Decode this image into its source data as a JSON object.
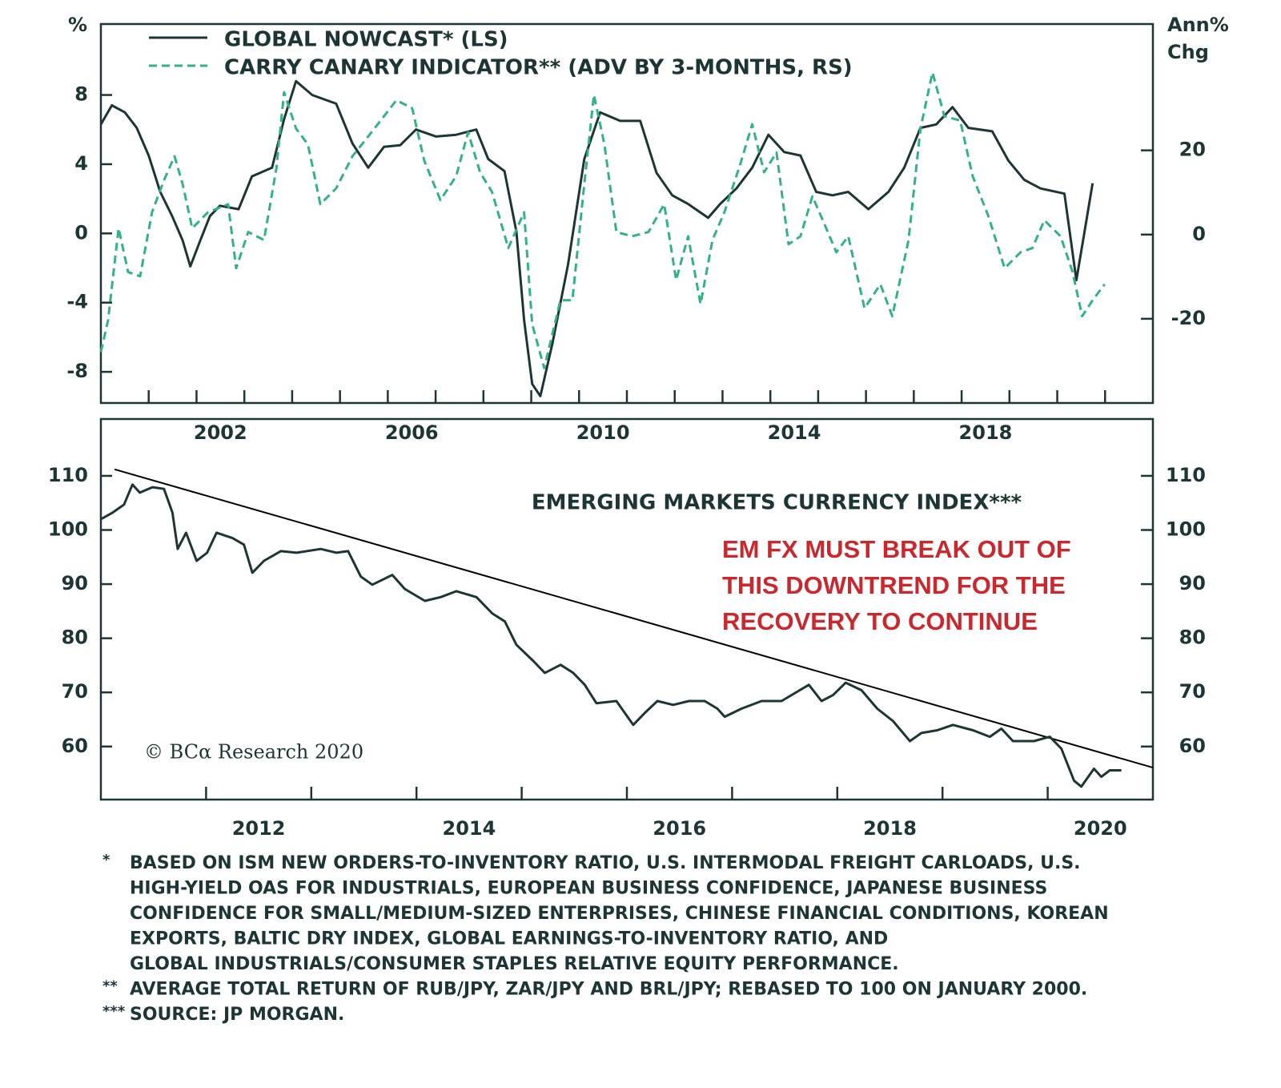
{
  "chart_data": [
    {
      "type": "line",
      "unit_label": "%",
      "y2_label": [
        "Ann%",
        "Chg"
      ],
      "xlim": [
        2000,
        2022
      ],
      "xticks": [
        2001,
        2002,
        2003,
        2004,
        2005,
        2006,
        2007,
        2008,
        2009,
        2010,
        2011,
        2012,
        2013,
        2014,
        2015,
        2016,
        2017,
        2018,
        2019,
        2020,
        2021
      ],
      "xtick_labels": [
        2002,
        2006,
        2010,
        2014,
        2018
      ],
      "ylim": [
        -9.8,
        12.1
      ],
      "yticks": [
        -8,
        -4,
        0,
        4,
        8
      ],
      "y2lim": [
        -40,
        50
      ],
      "y2ticks": [
        -20,
        0,
        20
      ],
      "legend": "top-left",
      "series": [
        {
          "name": "GLOBAL NOWCAST* (LS)",
          "color": "#1e3535",
          "dashed": false,
          "x": [
            2000.0,
            2000.23,
            2000.5,
            2000.75,
            2001.0,
            2001.24,
            2001.49,
            2001.71,
            2001.87,
            2002.08,
            2002.28,
            2002.49,
            2002.88,
            2003.16,
            2003.58,
            2003.83,
            2004.08,
            2004.42,
            2004.92,
            2005.26,
            2005.59,
            2005.92,
            2006.26,
            2006.59,
            2007.01,
            2007.43,
            2007.85,
            2008.1,
            2008.44,
            2008.69,
            2008.85,
            2009.02,
            2009.19,
            2009.44,
            2009.77,
            2010.11,
            2010.44,
            2010.86,
            2011.28,
            2011.62,
            2011.95,
            2012.28,
            2012.7,
            2012.95,
            2013.29,
            2013.62,
            2013.96,
            2014.29,
            2014.63,
            2014.96,
            2015.3,
            2015.63,
            2016.05,
            2016.47,
            2016.8,
            2017.14,
            2017.47,
            2017.81,
            2018.14,
            2018.64,
            2018.98,
            2019.31,
            2019.65,
            2020.15,
            2020.4,
            2020.57,
            2020.74
          ],
          "values": [
            6.3,
            7.4,
            7.0,
            6.1,
            4.5,
            2.4,
            1.0,
            -0.4,
            -1.9,
            -0.4,
            1.0,
            1.6,
            1.4,
            3.3,
            3.8,
            6.6,
            8.8,
            8.0,
            7.5,
            5.2,
            3.8,
            5.0,
            5.1,
            6.0,
            5.6,
            5.7,
            6.0,
            4.3,
            3.6,
            0.1,
            -5.0,
            -8.7,
            -9.4,
            -6.4,
            -1.8,
            4.3,
            7.0,
            6.5,
            6.5,
            3.5,
            2.2,
            1.7,
            0.9,
            1.7,
            2.6,
            3.8,
            5.7,
            4.7,
            4.5,
            2.4,
            2.2,
            2.4,
            1.4,
            2.4,
            3.8,
            6.1,
            6.3,
            7.3,
            6.1,
            5.9,
            4.2,
            3.1,
            2.6,
            2.3,
            -2.7,
            0.1,
            2.9
          ]
        },
        {
          "name": "CARRY CANARY INDICATOR** (ADV BY 3-MONTHS, RS)",
          "color": "#34b283",
          "dashed": true,
          "axis": "y2",
          "x": [
            2000.0,
            2000.15,
            2000.37,
            2000.57,
            2000.82,
            2001.07,
            2001.32,
            2001.54,
            2001.71,
            2001.91,
            2002.24,
            2002.66,
            2002.83,
            2003.08,
            2003.41,
            2003.67,
            2003.83,
            2004.08,
            2004.33,
            2004.59,
            2004.92,
            2005.26,
            2005.59,
            2005.92,
            2006.18,
            2006.51,
            2006.76,
            2007.1,
            2007.43,
            2007.68,
            2007.93,
            2008.18,
            2008.52,
            2008.85,
            2009.02,
            2009.27,
            2009.61,
            2009.86,
            2010.11,
            2010.31,
            2010.53,
            2010.78,
            2011.11,
            2011.45,
            2011.78,
            2012.03,
            2012.28,
            2012.54,
            2012.79,
            2013.04,
            2013.37,
            2013.62,
            2013.87,
            2014.13,
            2014.38,
            2014.63,
            2014.88,
            2015.13,
            2015.38,
            2015.63,
            2015.97,
            2016.3,
            2016.55,
            2016.89,
            2017.14,
            2017.39,
            2017.64,
            2017.97,
            2018.23,
            2018.56,
            2018.9,
            2019.23,
            2019.48,
            2019.73,
            2020.07,
            2020.32,
            2020.52,
            2020.74,
            2020.99
          ],
          "values": [
            -27.9,
            -20.3,
            1.5,
            -8.9,
            -9.9,
            5.3,
            12.9,
            18.6,
            12.0,
            1.5,
            5.3,
            7.2,
            -8.0,
            0.6,
            -1.3,
            15.7,
            33.8,
            25.2,
            21.4,
            7.2,
            11.0,
            18.6,
            23.3,
            28.1,
            31.9,
            30.0,
            17.6,
            8.2,
            13.9,
            24.3,
            14.8,
            10.1,
            -3.2,
            5.3,
            -21.3,
            -31.7,
            -15.6,
            -15.6,
            12.0,
            33.2,
            21.4,
            0.6,
            -0.4,
            0.6,
            7.2,
            -10.8,
            -0.4,
            -16.5,
            -1.3,
            5.3,
            16.7,
            26.2,
            14.8,
            19.5,
            -2.3,
            -0.4,
            9.1,
            2.5,
            -4.2,
            -0.4,
            -17.5,
            -11.8,
            -19.4,
            -1.3,
            25.2,
            38.5,
            28.1,
            27.1,
            13.9,
            4.4,
            -8.0,
            -4.2,
            -3.2,
            3.4,
            -0.4,
            -8.9,
            -19.4,
            -15.6,
            -11.8
          ]
        }
      ]
    },
    {
      "type": "line",
      "title": "EMERGING MARKETS CURRENCY INDEX***",
      "annotation": [
        "EM FX MUST BREAK OUT OF",
        "THIS DOWNTREND FOR THE",
        "RECOVERY TO CONTINUE"
      ],
      "annotation_color": "#c8282e",
      "credit": "© BCα Research 2020",
      "xlim": [
        2011,
        2021
      ],
      "xticks": [
        2012,
        2013,
        2014,
        2015,
        2016,
        2017,
        2018,
        2019,
        2020
      ],
      "xtick_labels": [
        2012,
        2014,
        2016,
        2018,
        2020
      ],
      "ylim": [
        50.2,
        120.5
      ],
      "yticks": [
        60,
        70,
        80,
        90,
        100,
        110
      ],
      "y2lim": [
        50.2,
        120.5
      ],
      "y2ticks": [
        60,
        70,
        80,
        90,
        100,
        110
      ],
      "series": [
        {
          "color": "#1e3535",
          "dashed": false,
          "x": [
            2011.0,
            2011.11,
            2011.22,
            2011.3,
            2011.37,
            2011.49,
            2011.6,
            2011.68,
            2011.73,
            2011.81,
            2011.91,
            2012.01,
            2012.1,
            2012.25,
            2012.36,
            2012.44,
            2012.55,
            2012.71,
            2012.86,
            2013.09,
            2013.24,
            2013.35,
            2013.47,
            2013.58,
            2013.77,
            2013.89,
            2014.08,
            2014.23,
            2014.38,
            2014.57,
            2014.72,
            2014.84,
            2014.95,
            2015.11,
            2015.22,
            2015.37,
            2015.49,
            2015.6,
            2015.71,
            2015.9,
            2016.06,
            2016.17,
            2016.29,
            2016.44,
            2016.59,
            2016.74,
            2016.86,
            2016.93,
            2017.09,
            2017.28,
            2017.47,
            2017.66,
            2017.73,
            2017.85,
            2017.96,
            2018.08,
            2018.23,
            2018.38,
            2018.53,
            2018.69,
            2018.8,
            2018.95,
            2019.1,
            2019.29,
            2019.45,
            2019.56,
            2019.67,
            2019.87,
            2020.02,
            2020.13,
            2020.25,
            2020.32,
            2020.44,
            2020.51,
            2020.59,
            2020.7
          ],
          "values": [
            102.0,
            103.2,
            104.7,
            108.4,
            106.9,
            107.9,
            107.6,
            103.2,
            96.5,
            99.5,
            94.3,
            95.8,
            99.5,
            98.5,
            97.3,
            92.1,
            94.3,
            96.1,
            95.8,
            96.5,
            95.8,
            96.1,
            91.4,
            89.9,
            91.7,
            89.1,
            86.9,
            87.6,
            88.7,
            87.6,
            84.6,
            83.1,
            78.8,
            75.8,
            73.6,
            75.1,
            73.6,
            71.4,
            68.0,
            68.4,
            64.0,
            66.2,
            68.4,
            67.7,
            68.4,
            68.4,
            67.0,
            65.5,
            67.0,
            68.4,
            68.4,
            70.6,
            71.4,
            68.4,
            69.5,
            71.8,
            70.4,
            67.0,
            64.7,
            61.0,
            62.5,
            63.0,
            64.0,
            63.0,
            61.8,
            63.3,
            61.0,
            61.0,
            61.8,
            59.6,
            53.7,
            52.6,
            55.9,
            54.4,
            55.6,
            55.6
          ]
        }
      ],
      "trendline": {
        "color": "#000000",
        "x": [
          2011.13,
          2021.0
        ],
        "values": [
          111.2,
          56.1
        ]
      }
    }
  ],
  "footnotes": [
    {
      "marker": "*",
      "lines": [
        "BASED ON ISM NEW ORDERS-TO-INVENTORY RATIO, U.S. INTERMODAL FREIGHT CARLOADS, U.S.",
        "HIGH-YIELD OAS FOR INDUSTRIALS, EUROPEAN BUSINESS CONFIDENCE, JAPANESE BUSINESS",
        "CONFIDENCE FOR SMALL/MEDIUM-SIZED ENTERPRISES, CHINESE FINANCIAL CONDITIONS, KOREAN",
        "EXPORTS, BALTIC DRY INDEX, GLOBAL EARNINGS-TO-INVENTORY RATIO, AND",
        "GLOBAL INDUSTRIALS/CONSUMER STAPLES RELATIVE EQUITY PERFORMANCE."
      ]
    },
    {
      "marker": "**",
      "lines": [
        "AVERAGE TOTAL RETURN OF RUB/JPY, ZAR/JPY AND BRL/JPY; REBASED TO 100 ON JANUARY 2000."
      ]
    },
    {
      "marker": "***",
      "lines": [
        "SOURCE: JP MORGAN."
      ]
    }
  ]
}
